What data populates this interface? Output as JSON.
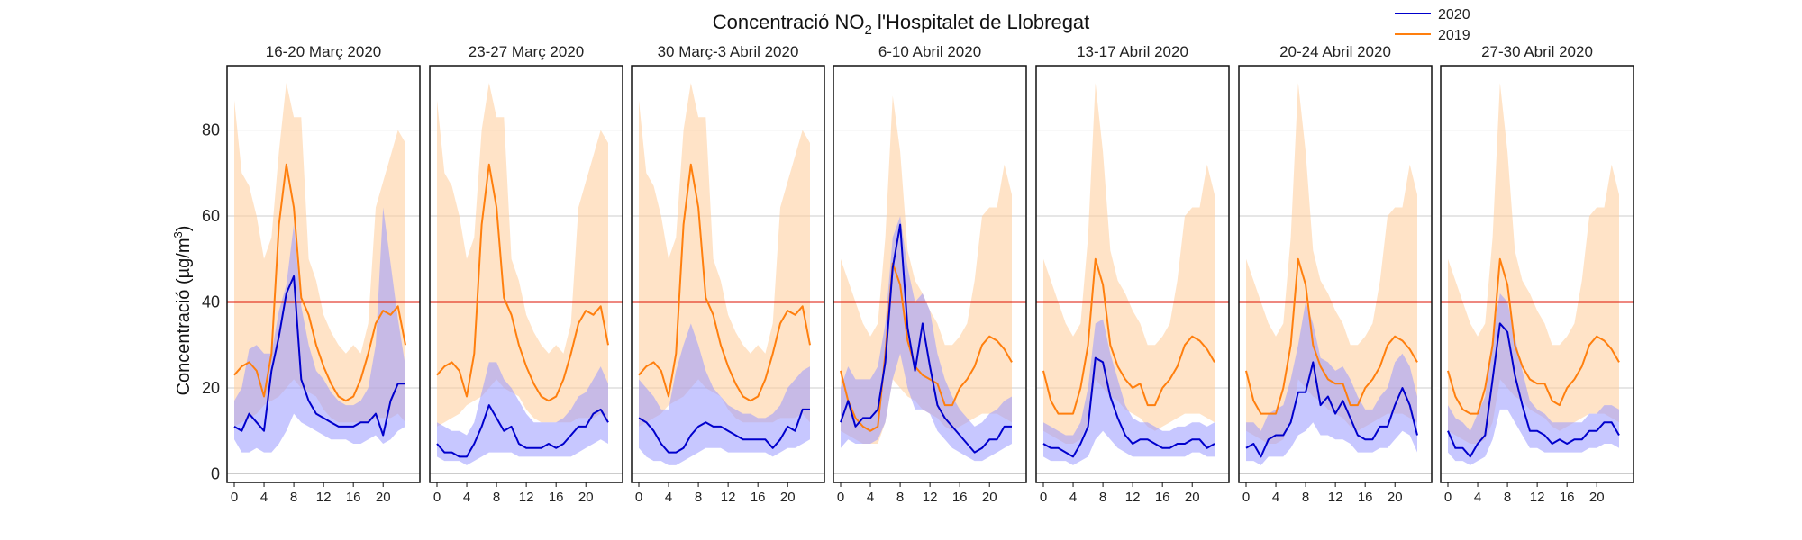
{
  "chart_data": {
    "type": "line",
    "title": "Concentració NO",
    "title_sub": "2",
    "title_suffix": " l'Hospitalet de Llobregat",
    "ylabel_prefix": "Concentració (µg/m",
    "ylabel_sup": "3",
    "ylabel_suffix": ")",
    "ylim": [
      -2,
      95
    ],
    "xlim": [
      0,
      23
    ],
    "xticks": [
      0,
      4,
      8,
      12,
      16,
      20
    ],
    "yticks": [
      0,
      20,
      40,
      60,
      80
    ],
    "grid": "horizontal",
    "legend_position": "top-right",
    "limit_line": 40,
    "colors": {
      "y2020": "#0000cc",
      "y2019": "#ff7f0e",
      "limit": "#dd1100",
      "band2020": "#9999ff",
      "band2019": "#ffcc99"
    },
    "series_names": [
      "2020",
      "2019"
    ],
    "panels": [
      {
        "title": "16-20 Març 2020",
        "l2020": [
          11,
          10,
          14,
          12,
          10,
          24,
          32,
          42,
          46,
          22,
          17,
          14,
          13,
          12,
          11,
          11,
          11,
          12,
          12,
          14,
          9,
          17,
          21,
          21
        ],
        "lo2020": [
          8,
          5,
          5,
          6,
          5,
          5,
          7,
          10,
          14,
          12,
          11,
          10,
          9,
          8,
          8,
          8,
          7,
          7,
          8,
          9,
          7,
          8,
          10,
          11
        ],
        "hi2020": [
          17,
          20,
          29,
          30,
          28,
          28,
          38,
          44,
          58,
          39,
          30,
          24,
          22,
          19,
          17,
          16,
          16,
          17,
          20,
          30,
          62,
          49,
          36,
          25
        ],
        "l2019": [
          23,
          25,
          26,
          24,
          18,
          28,
          58,
          72,
          62,
          41,
          37,
          30,
          25,
          21,
          18,
          17,
          18,
          22,
          28,
          35,
          38,
          37,
          39,
          30
        ],
        "lo2019": [
          11,
          12,
          13,
          14,
          16,
          17,
          18,
          20,
          22,
          20,
          19,
          18,
          15,
          13,
          12,
          12,
          12,
          12,
          12,
          13,
          13,
          13,
          14,
          12
        ],
        "hi2019": [
          87,
          70,
          67,
          60,
          50,
          55,
          75,
          91,
          83,
          83,
          50,
          45,
          37,
          33,
          30,
          28,
          30,
          28,
          35,
          62,
          68,
          74,
          80,
          77
        ]
      },
      {
        "title": "23-27 Març 2020",
        "l2020": [
          7,
          5,
          5,
          4,
          4,
          7,
          11,
          16,
          13,
          10,
          11,
          7,
          6,
          6,
          6,
          7,
          6,
          7,
          9,
          11,
          11,
          14,
          15,
          12
        ],
        "lo2020": [
          4,
          3,
          3,
          3,
          2,
          3,
          4,
          5,
          5,
          5,
          5,
          4,
          4,
          4,
          4,
          4,
          4,
          4,
          4,
          5,
          6,
          7,
          8,
          7
        ],
        "hi2020": [
          12,
          11,
          10,
          10,
          9,
          12,
          19,
          26,
          26,
          22,
          20,
          17,
          14,
          12,
          12,
          12,
          12,
          13,
          15,
          18,
          19,
          22,
          25,
          21
        ],
        "l2019": [
          23,
          25,
          26,
          24,
          18,
          28,
          58,
          72,
          62,
          41,
          37,
          30,
          25,
          21,
          18,
          17,
          18,
          22,
          28,
          35,
          38,
          37,
          39,
          30
        ],
        "lo2019": [
          11,
          12,
          13,
          14,
          16,
          17,
          18,
          20,
          22,
          20,
          19,
          18,
          15,
          13,
          12,
          12,
          12,
          12,
          12,
          13,
          13,
          13,
          14,
          12
        ],
        "hi2019": [
          87,
          70,
          67,
          60,
          50,
          55,
          80,
          91,
          83,
          83,
          50,
          45,
          37,
          33,
          30,
          28,
          30,
          28,
          35,
          62,
          68,
          74,
          80,
          77
        ]
      },
      {
        "title": "30 Març-3 Abril 2020",
        "l2020": [
          13,
          12,
          10,
          7,
          5,
          5,
          6,
          9,
          11,
          12,
          11,
          11,
          10,
          9,
          8,
          8,
          8,
          8,
          6,
          8,
          11,
          10,
          15,
          15
        ],
        "lo2020": [
          6,
          4,
          3,
          3,
          2,
          2,
          3,
          4,
          5,
          6,
          6,
          6,
          5,
          5,
          5,
          5,
          5,
          5,
          4,
          5,
          6,
          6,
          7,
          8
        ],
        "hi2020": [
          22,
          20,
          18,
          15,
          15,
          24,
          30,
          35,
          30,
          24,
          20,
          18,
          16,
          15,
          14,
          14,
          13,
          13,
          14,
          16,
          20,
          22,
          24,
          25
        ],
        "l2019": [
          23,
          25,
          26,
          24,
          18,
          28,
          58,
          72,
          62,
          41,
          37,
          30,
          25,
          21,
          18,
          17,
          18,
          22,
          28,
          35,
          38,
          37,
          39,
          30
        ],
        "lo2019": [
          11,
          12,
          13,
          14,
          16,
          17,
          18,
          20,
          22,
          20,
          19,
          18,
          15,
          13,
          12,
          12,
          12,
          12,
          12,
          13,
          13,
          13,
          14,
          12
        ],
        "hi2019": [
          87,
          70,
          67,
          60,
          50,
          55,
          80,
          91,
          83,
          83,
          50,
          45,
          37,
          33,
          30,
          28,
          30,
          28,
          35,
          62,
          68,
          74,
          80,
          77
        ]
      },
      {
        "title": "6-10 Abril 2020",
        "l2020": [
          12,
          17,
          11,
          13,
          13,
          15,
          26,
          48,
          58,
          34,
          24,
          35,
          25,
          16,
          13,
          11,
          9,
          7,
          5,
          6,
          8,
          8,
          11,
          11
        ],
        "lo2020": [
          6,
          8,
          7,
          7,
          7,
          8,
          12,
          22,
          28,
          20,
          15,
          15,
          14,
          10,
          8,
          6,
          5,
          4,
          3,
          3,
          4,
          5,
          6,
          7
        ],
        "hi2020": [
          20,
          25,
          22,
          22,
          22,
          25,
          35,
          55,
          60,
          48,
          40,
          42,
          38,
          28,
          22,
          18,
          15,
          13,
          11,
          12,
          14,
          15,
          17,
          18
        ],
        "l2019": [
          24,
          17,
          13,
          11,
          10,
          11,
          28,
          49,
          44,
          31,
          25,
          23,
          22,
          21,
          16,
          16,
          20,
          22,
          25,
          30,
          32,
          31,
          29,
          26
        ],
        "lo2019": [
          10,
          9,
          8,
          7,
          7,
          7,
          12,
          22,
          20,
          18,
          17,
          15,
          14,
          13,
          11,
          10,
          11,
          12,
          13,
          14,
          14,
          14,
          13,
          12
        ],
        "hi2019": [
          50,
          45,
          40,
          35,
          32,
          35,
          55,
          88,
          75,
          52,
          45,
          42,
          38,
          35,
          30,
          30,
          32,
          35,
          45,
          60,
          62,
          62,
          72,
          65
        ]
      },
      {
        "title": "13-17 Abril 2020",
        "l2020": [
          7,
          6,
          6,
          5,
          4,
          7,
          11,
          27,
          26,
          18,
          13,
          9,
          7,
          8,
          8,
          7,
          6,
          6,
          7,
          7,
          8,
          8,
          6,
          7
        ],
        "lo2020": [
          4,
          3,
          3,
          3,
          2,
          3,
          4,
          8,
          10,
          8,
          6,
          5,
          4,
          4,
          4,
          4,
          4,
          4,
          4,
          4,
          5,
          5,
          4,
          4
        ],
        "hi2020": [
          12,
          11,
          10,
          9,
          9,
          12,
          20,
          35,
          36,
          28,
          22,
          16,
          13,
          12,
          12,
          11,
          10,
          10,
          11,
          11,
          12,
          12,
          11,
          12
        ],
        "l2019": [
          24,
          17,
          14,
          14,
          14,
          20,
          30,
          50,
          44,
          30,
          25,
          22,
          20,
          21,
          16,
          16,
          20,
          22,
          25,
          30,
          32,
          31,
          29,
          26
        ],
        "lo2019": [
          10,
          9,
          8,
          7,
          7,
          8,
          12,
          22,
          20,
          18,
          17,
          15,
          14,
          13,
          11,
          10,
          11,
          12,
          13,
          14,
          14,
          14,
          13,
          12
        ],
        "hi2019": [
          50,
          45,
          40,
          35,
          32,
          35,
          55,
          91,
          75,
          52,
          45,
          42,
          38,
          35,
          30,
          30,
          32,
          35,
          45,
          60,
          62,
          62,
          72,
          65
        ]
      },
      {
        "title": "20-24 Abril 2020",
        "l2020": [
          6,
          7,
          4,
          8,
          9,
          9,
          12,
          19,
          19,
          26,
          16,
          18,
          14,
          17,
          13,
          9,
          8,
          8,
          11,
          11,
          16,
          20,
          16,
          9
        ],
        "lo2020": [
          3,
          3,
          2,
          4,
          4,
          4,
          6,
          9,
          10,
          12,
          9,
          9,
          8,
          8,
          7,
          5,
          5,
          5,
          6,
          6,
          8,
          10,
          9,
          5
        ],
        "hi2020": [
          12,
          12,
          10,
          14,
          15,
          16,
          22,
          30,
          40,
          35,
          27,
          26,
          24,
          25,
          22,
          18,
          15,
          15,
          18,
          20,
          26,
          28,
          25,
          18
        ],
        "l2019": [
          24,
          17,
          14,
          14,
          14,
          20,
          30,
          50,
          44,
          30,
          25,
          22,
          21,
          21,
          16,
          16,
          20,
          22,
          25,
          30,
          32,
          31,
          29,
          26
        ],
        "lo2019": [
          10,
          9,
          8,
          7,
          7,
          8,
          12,
          22,
          20,
          18,
          17,
          15,
          14,
          13,
          11,
          10,
          11,
          12,
          13,
          14,
          14,
          14,
          13,
          12
        ],
        "hi2019": [
          50,
          45,
          40,
          35,
          32,
          35,
          55,
          91,
          75,
          52,
          45,
          42,
          38,
          35,
          30,
          30,
          32,
          35,
          45,
          60,
          62,
          62,
          72,
          65
        ]
      },
      {
        "title": "27-30 Abril 2020",
        "l2020": [
          10,
          6,
          6,
          4,
          7,
          9,
          22,
          35,
          33,
          23,
          16,
          10,
          10,
          9,
          7,
          8,
          7,
          8,
          8,
          10,
          10,
          12,
          12,
          9
        ],
        "lo2020": [
          5,
          3,
          3,
          2,
          3,
          4,
          8,
          15,
          15,
          12,
          9,
          6,
          6,
          5,
          5,
          5,
          5,
          5,
          5,
          6,
          6,
          7,
          7,
          6
        ],
        "hi2020": [
          16,
          13,
          12,
          10,
          14,
          18,
          32,
          42,
          40,
          32,
          24,
          17,
          15,
          14,
          12,
          12,
          12,
          12,
          12,
          14,
          14,
          16,
          16,
          15
        ],
        "l2019": [
          24,
          18,
          15,
          14,
          14,
          20,
          30,
          50,
          44,
          30,
          25,
          22,
          21,
          21,
          17,
          16,
          20,
          22,
          25,
          30,
          32,
          31,
          29,
          26
        ],
        "lo2019": [
          10,
          9,
          8,
          7,
          7,
          8,
          12,
          22,
          20,
          18,
          17,
          15,
          14,
          13,
          11,
          10,
          11,
          12,
          13,
          14,
          14,
          14,
          13,
          12
        ],
        "hi2019": [
          50,
          45,
          40,
          35,
          32,
          35,
          55,
          91,
          75,
          52,
          45,
          42,
          38,
          35,
          30,
          30,
          32,
          35,
          45,
          60,
          62,
          62,
          72,
          65
        ]
      }
    ]
  }
}
